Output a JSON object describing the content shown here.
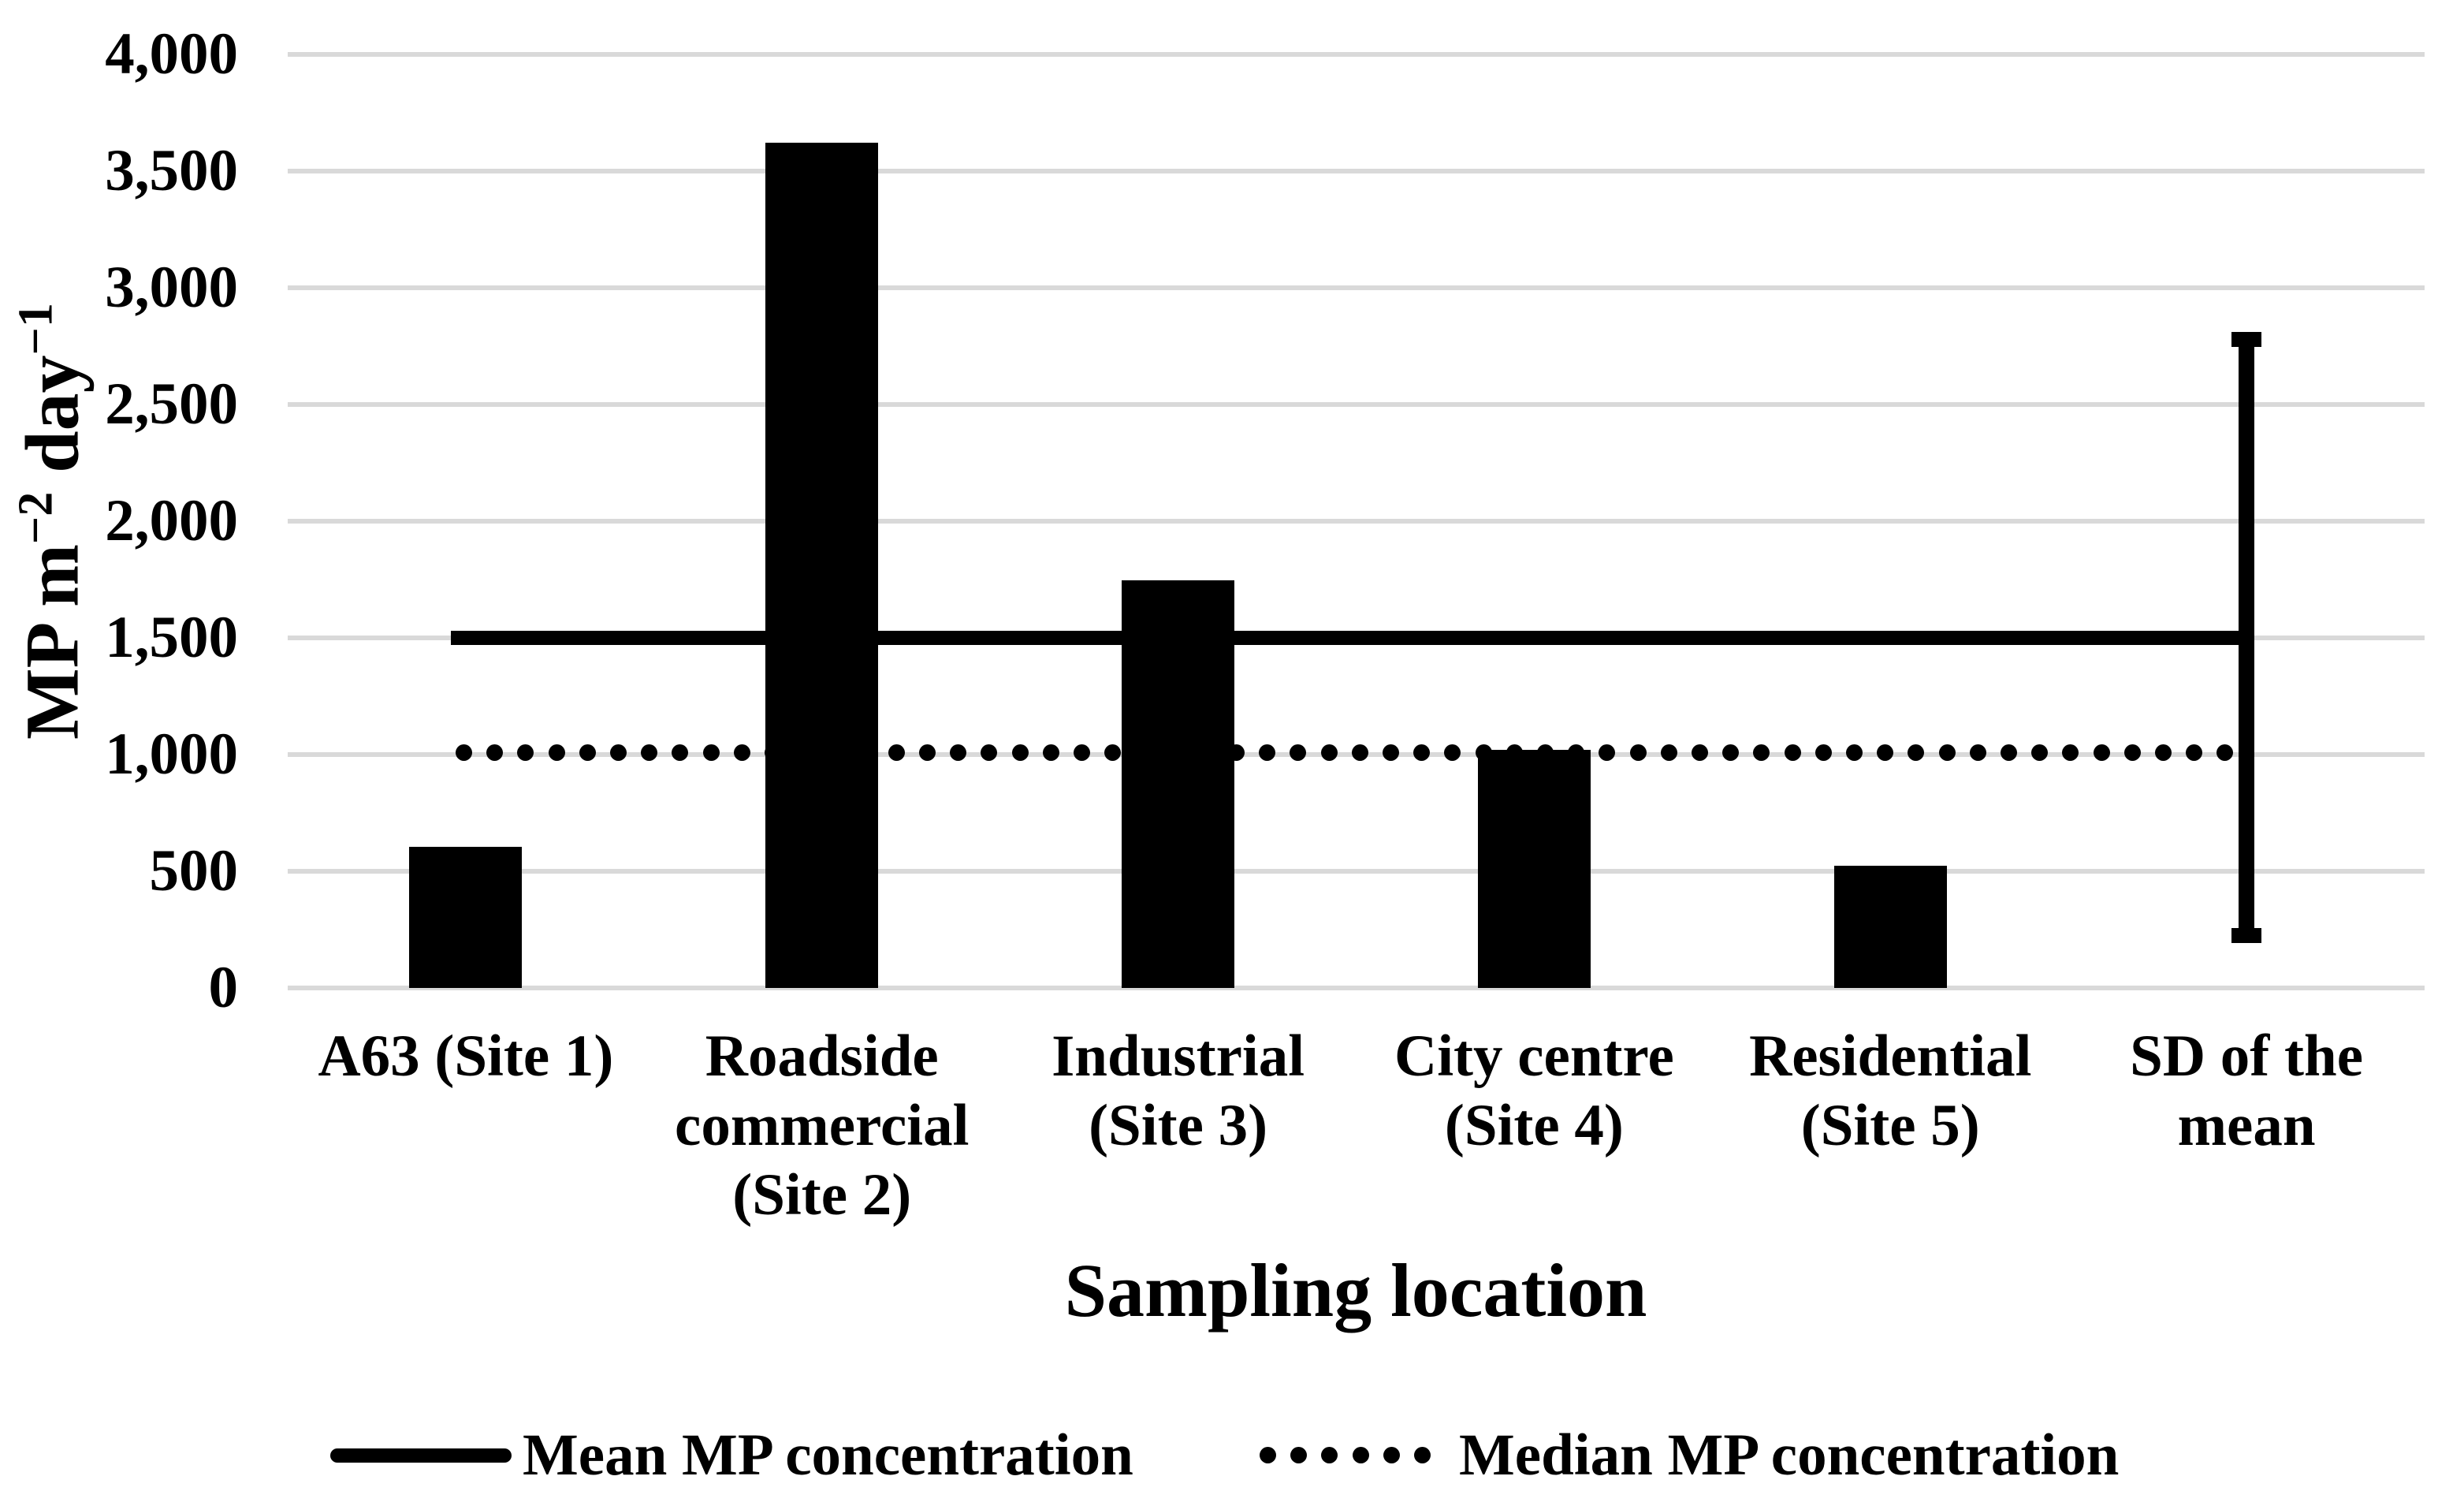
{
  "chart_data": {
    "type": "bar",
    "title": "",
    "xlabel": "Sampling location",
    "ylabel": "MP m−2 day−1",
    "ylabel_parts": [
      {
        "text": "MP m",
        "sup": false
      },
      {
        "text": "−2",
        "sup": true
      },
      {
        "text": " day",
        "sup": false
      },
      {
        "text": "−1",
        "sup": true
      }
    ],
    "categories": [
      "A63 (Site 1)",
      "Roadside\ncommercial\n(Site 2)",
      "Industrial\n(Site 3)",
      "City centre\n(Site 4)",
      "Residential\n(Site 5)",
      "SD of the\nmean"
    ],
    "categories_flat": [
      "A63 (Site 1)",
      "Roadside commercial (Site 2)",
      "Industrial (Site 3)",
      "City centre (Site 4)",
      "Residential (Site 5)",
      "SD of the mean"
    ],
    "bar_values": [
      605,
      3620,
      1745,
      1020,
      525,
      null
    ],
    "mean_line_value": 1500,
    "median_line_value": 1010,
    "sd_whisker": {
      "category": "SD of the mean",
      "top_value": 2780,
      "bottom_value": 225
    },
    "ylim": [
      0,
      4000
    ],
    "y_tick_step": 500,
    "y_ticks": [
      0,
      500,
      1000,
      1500,
      2000,
      2500,
      3000,
      3500,
      4000
    ],
    "y_tick_labels": [
      "0",
      "500",
      "1,000",
      "1,500",
      "2,000",
      "2,500",
      "3,000",
      "3,500",
      "4,000"
    ],
    "grid": "horizontal",
    "legend_position": "bottom",
    "legend": [
      {
        "label": "Mean MP concentration",
        "style": "solid-line"
      },
      {
        "label": "Median MP concentration",
        "style": "dotted-line"
      }
    ],
    "colors": {
      "bar": "#000000",
      "line": "#000000",
      "gridline": "#d9d9d9",
      "background": "#ffffff"
    }
  }
}
